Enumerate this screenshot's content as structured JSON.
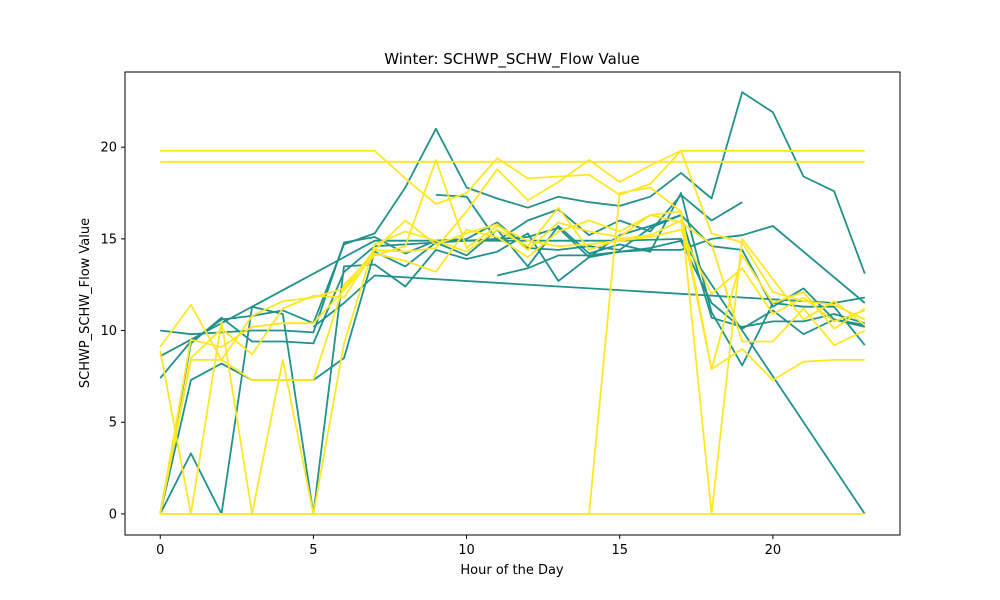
{
  "chart_data": {
    "type": "line",
    "title": "Winter: SCHWP_SCHW_Flow Value",
    "xlabel": "Hour of the Day",
    "ylabel": "SCHWP_SCHW_Flow Value",
    "xlim": [
      -1.15,
      24.15
    ],
    "ylim": [
      -1.15,
      24.1
    ],
    "xticks": [
      0,
      5,
      10,
      15,
      20
    ],
    "yticks": [
      0,
      5,
      10,
      15,
      20
    ],
    "grid": false,
    "legend": "none",
    "colors": {
      "teal": "#21918c",
      "yellow": "#fde725"
    },
    "series": [
      {
        "color": "#21918c",
        "x": [
          0,
          1,
          2,
          3,
          4,
          5,
          6,
          7,
          8,
          9,
          10,
          11,
          12,
          13,
          14,
          15,
          16,
          17,
          18,
          19,
          20,
          21,
          22,
          23
        ],
        "y": [
          7.4,
          9.4,
          10.6,
          10.8,
          11.1,
          10.4,
          14.7,
          15.3,
          17.8,
          21.0,
          17.8,
          17.2,
          16.7,
          17.3,
          17.0,
          16.8,
          17.3,
          18.6,
          17.2,
          23.0,
          21.9,
          18.4,
          17.6,
          13.1
        ]
      },
      {
        "color": "#21918c",
        "x": [
          0,
          1,
          2,
          3,
          4,
          5,
          6,
          7,
          8,
          9,
          10,
          11,
          12,
          13,
          14,
          15,
          16,
          17,
          18,
          19,
          20,
          21,
          22,
          23
        ],
        "y": [
          0.0,
          7.3,
          8.2,
          7.3,
          7.3,
          7.3,
          8.5,
          14.3,
          13.5,
          14.8,
          14.1,
          15.5,
          13.5,
          15.7,
          14.2,
          14.7,
          14.3,
          17.5,
          11.0,
          8.1,
          11.5,
          11.3,
          11.3,
          9.2
        ]
      },
      {
        "color": "#21918c",
        "x": [
          0,
          1,
          2,
          3,
          4,
          5,
          6,
          7,
          8,
          9,
          10,
          11,
          12,
          13,
          14,
          15,
          16,
          17,
          18,
          19,
          20,
          21,
          22,
          23
        ],
        "y": [
          0.0,
          9.3,
          10.7,
          9.4,
          9.4,
          9.3,
          13.2,
          14.6,
          14.7,
          14.8,
          14.9,
          15.0,
          15.1,
          15.6,
          14.0,
          15.2,
          15.7,
          16.3,
          14.6,
          14.4,
          11.3,
          12.3,
          10.6,
          10.2
        ]
      },
      {
        "color": "#21918c",
        "x": [
          0,
          1,
          2,
          3,
          4,
          5,
          6,
          7,
          8,
          9,
          10,
          11,
          12,
          13,
          14,
          15,
          16,
          17,
          18,
          19,
          20,
          21,
          22,
          23
        ],
        "y": [
          0.0,
          3.3,
          0.0,
          11.3,
          10.9,
          0.0,
          13.5,
          13.6,
          12.4,
          14.4,
          13.9,
          14.3,
          15.3,
          12.7,
          14.0,
          14.3,
          14.5,
          14.9,
          11.5,
          10.1,
          11.1,
          9.8,
          10.6,
          10.3
        ]
      },
      {
        "color": "#21918c",
        "x": [
          0,
          1,
          2,
          3,
          4,
          5,
          6,
          7,
          8,
          9,
          10,
          11,
          12,
          13,
          14,
          15,
          16,
          17,
          18,
          19,
          20,
          21,
          22,
          23
        ],
        "y": [
          10.0,
          9.8,
          9.9,
          10.0,
          10.0,
          9.9,
          14.8,
          15.1,
          14.2,
          14.9,
          15.0,
          15.9,
          14.5,
          14.4,
          14.6,
          14.4,
          15.6,
          16.3,
          10.7,
          10.2,
          10.5,
          10.5,
          10.9,
          10.4
        ]
      },
      {
        "color": "#21918c",
        "x": [
          0,
          7,
          15,
          17,
          23
        ],
        "y": [
          8.6,
          14.9,
          14.9,
          15.0,
          0.0
        ]
      },
      {
        "color": "#21918c",
        "x": [
          9,
          10,
          11,
          12,
          13,
          14,
          15,
          16,
          17,
          18,
          19
        ],
        "y": [
          17.4,
          17.3,
          14.9,
          16.0,
          16.6,
          15.2,
          16.0,
          15.4,
          17.4,
          16.0,
          17.0
        ]
      },
      {
        "color": "#21918c",
        "x": [
          11,
          12,
          13,
          14,
          15,
          16,
          17,
          18,
          19,
          20,
          23
        ],
        "y": [
          13.0,
          13.4,
          14.1,
          14.1,
          14.3,
          14.4,
          14.4,
          15.0,
          15.2,
          15.7,
          11.5
        ]
      },
      {
        "color": "#21918c",
        "x": [
          5,
          6,
          7,
          22,
          23
        ],
        "y": [
          10.2,
          11.5,
          13.0,
          11.5,
          11.8
        ]
      },
      {
        "color": "#fde725",
        "x": [
          0,
          23
        ],
        "y": [
          19.2,
          19.2
        ]
      },
      {
        "color": "#fde725",
        "x": [
          0,
          1,
          2,
          3,
          4,
          5,
          6,
          7,
          8,
          9,
          10,
          11,
          12,
          13,
          14,
          15,
          16,
          17,
          18,
          19,
          20,
          21,
          22,
          23
        ],
        "y": [
          19.8,
          19.8,
          19.8,
          19.8,
          19.8,
          19.8,
          19.8,
          19.8,
          18.3,
          16.9,
          17.5,
          19.4,
          18.3,
          18.4,
          18.5,
          17.4,
          18.0,
          19.8,
          19.8,
          19.8,
          19.8,
          19.8,
          19.8,
          19.8
        ]
      },
      {
        "color": "#fde725",
        "x": [
          0,
          23
        ],
        "y": [
          0.0,
          0.0
        ]
      },
      {
        "color": "#fde725",
        "x": [
          0,
          1,
          2,
          3,
          4,
          5,
          6,
          7,
          8,
          9,
          10,
          11,
          12,
          13,
          14,
          15,
          16,
          17,
          18,
          19,
          20,
          21,
          22,
          23
        ],
        "y": [
          9.1,
          11.4,
          8.4,
          10.8,
          11.6,
          11.8,
          12.3,
          14.4,
          16.0,
          14.7,
          15.3,
          15.8,
          14.4,
          15.9,
          15.4,
          15.1,
          16.3,
          15.9,
          14.7,
          9.4,
          9.4,
          11.2,
          9.2,
          10.0
        ]
      },
      {
        "color": "#fde725",
        "x": [
          0,
          1,
          2,
          3,
          4,
          5,
          6,
          7,
          8,
          9,
          10,
          11,
          12,
          13,
          14,
          15,
          16,
          17,
          18,
          19,
          20,
          21,
          22,
          23
        ],
        "y": [
          8.9,
          0.0,
          10.5,
          0.0,
          8.4,
          0.0,
          9.3,
          14.7,
          15.4,
          14.9,
          14.3,
          15.5,
          14.6,
          16.7,
          14.4,
          15.0,
          15.2,
          16.0,
          7.9,
          14.1,
          11.5,
          12.1,
          10.1,
          11.2
        ]
      },
      {
        "color": "#fde725",
        "x": [
          0,
          1,
          2,
          3,
          4,
          5,
          6,
          7,
          8,
          9,
          10,
          11,
          12,
          13,
          14,
          15,
          16,
          17,
          18,
          19,
          20,
          21,
          22,
          23
        ],
        "y": [
          0.0,
          8.4,
          8.4,
          7.3,
          7.3,
          7.3,
          12.5,
          14.2,
          13.8,
          13.2,
          15.5,
          15.1,
          14.0,
          15.4,
          16.0,
          15.4,
          16.3,
          16.5,
          7.9,
          9.0,
          7.3,
          8.3,
          8.4,
          8.4
        ]
      },
      {
        "color": "#fde725",
        "x": [
          0,
          1,
          2,
          3,
          4,
          5,
          6,
          7,
          8,
          9,
          10,
          11,
          12,
          13,
          14,
          15,
          16,
          17,
          18,
          19,
          20,
          21,
          22,
          23
        ],
        "y": [
          0.0,
          9.5,
          9.1,
          10.2,
          10.4,
          10.4,
          12.2,
          14.1,
          14.6,
          19.3,
          14.5,
          15.7,
          14.9,
          14.6,
          14.7,
          14.9,
          15.1,
          15.5,
          12.0,
          13.4,
          10.9,
          11.8,
          10.5,
          11.1
        ]
      },
      {
        "color": "#fde725",
        "x": [
          0,
          1,
          2,
          3,
          4,
          5,
          6,
          7,
          8,
          9,
          10,
          11,
          12,
          13,
          14,
          15,
          16,
          17,
          18,
          19,
          20,
          21,
          22,
          23
        ],
        "y": [
          0.0,
          8.5,
          10.1,
          8.7,
          11.2,
          11.9,
          11.8,
          14.4,
          14.3,
          14.5,
          16.5,
          18.8,
          17.1,
          18.1,
          19.3,
          18.1,
          19.0,
          19.8,
          15.3,
          14.8,
          12.1,
          11.6,
          11.4,
          10.6
        ]
      },
      {
        "color": "#fde725",
        "x": [
          0,
          13,
          14,
          15,
          16,
          17,
          18,
          19,
          20,
          21,
          22,
          23
        ],
        "y": [
          0.0,
          0.0,
          0.0,
          17.5,
          17.8,
          16.5,
          0.0,
          15.0,
          12.8,
          10.6,
          11.6,
          10.3
        ]
      }
    ]
  }
}
